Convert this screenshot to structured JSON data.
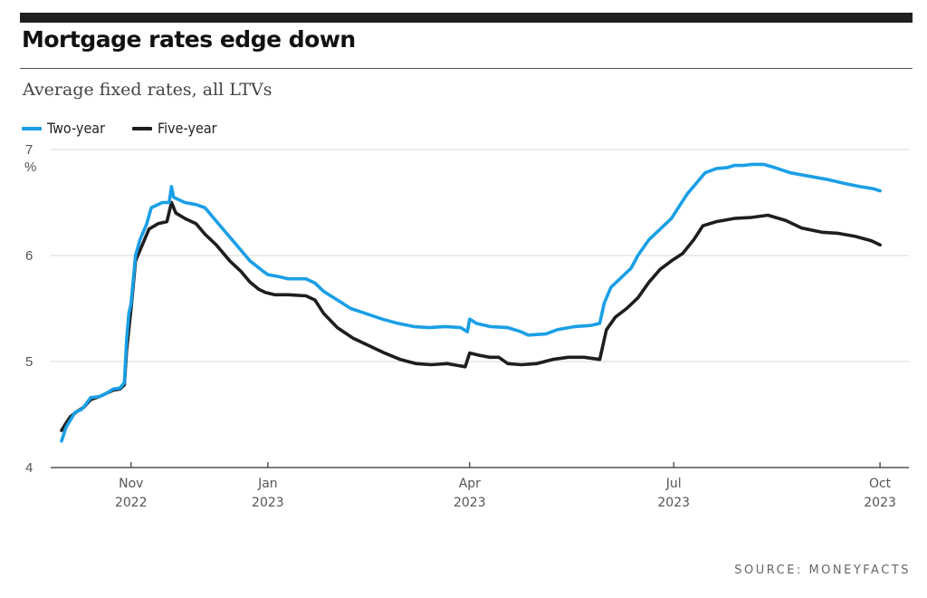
{
  "header": {
    "title": "Mortgage rates edge down",
    "subtitle": "Average fixed rates, all LTVs"
  },
  "source": "SOURCE: MONEYFACTS",
  "colors": {
    "two_year": "#1a9fe6",
    "five_year": "#1e1e1e",
    "grid": "#d9d9d9",
    "axis_text": "#555555"
  },
  "chart_data": {
    "type": "line",
    "title": "Mortgage rates edge down",
    "subtitle": "Average fixed rates, all LTVs",
    "xlabel": "",
    "ylabel": "%",
    "ylim": [
      4,
      7
    ],
    "yticks": [
      4,
      5,
      6,
      7
    ],
    "xlim": [
      "2022-10-01",
      "2023-10-05"
    ],
    "xticks": [
      {
        "date": "2022-11-01",
        "month": "Nov",
        "year": "2022"
      },
      {
        "date": "2023-01-01",
        "month": "Jan",
        "year": "2023"
      },
      {
        "date": "2023-04-01",
        "month": "Apr",
        "year": "2023"
      },
      {
        "date": "2023-07-01",
        "month": "Jul",
        "year": "2023"
      },
      {
        "date": "2023-10-01",
        "month": "Oct",
        "year": "2023"
      }
    ],
    "grid": true,
    "legend_position": "top-left",
    "series": [
      {
        "name": "Two-year",
        "color": "#1a9fe6",
        "points": [
          [
            "2022-10-01",
            4.25
          ],
          [
            "2022-10-03",
            4.38
          ],
          [
            "2022-10-05",
            4.45
          ],
          [
            "2022-10-07",
            4.52
          ],
          [
            "2022-10-10",
            4.55
          ],
          [
            "2022-10-12",
            4.6
          ],
          [
            "2022-10-14",
            4.66
          ],
          [
            "2022-10-18",
            4.67
          ],
          [
            "2022-10-21",
            4.7
          ],
          [
            "2022-10-24",
            4.74
          ],
          [
            "2022-10-27",
            4.75
          ],
          [
            "2022-10-29",
            4.8
          ],
          [
            "2022-10-30",
            5.2
          ],
          [
            "2022-10-31",
            5.45
          ],
          [
            "2022-11-01",
            5.55
          ],
          [
            "2022-11-03",
            6.0
          ],
          [
            "2022-11-05",
            6.15
          ],
          [
            "2022-11-08",
            6.3
          ],
          [
            "2022-11-10",
            6.45
          ],
          [
            "2022-11-15",
            6.5
          ],
          [
            "2022-11-18",
            6.5
          ],
          [
            "2022-11-19",
            6.65
          ],
          [
            "2022-11-20",
            6.55
          ],
          [
            "2022-11-25",
            6.5
          ],
          [
            "2022-11-30",
            6.48
          ],
          [
            "2022-12-04",
            6.45
          ],
          [
            "2022-12-08",
            6.35
          ],
          [
            "2022-12-12",
            6.25
          ],
          [
            "2022-12-16",
            6.15
          ],
          [
            "2022-12-20",
            6.05
          ],
          [
            "2022-12-24",
            5.95
          ],
          [
            "2022-12-27",
            5.9
          ],
          [
            "2022-12-30",
            5.85
          ],
          [
            "2023-01-01",
            5.82
          ],
          [
            "2023-01-06",
            5.8
          ],
          [
            "2023-01-10",
            5.78
          ],
          [
            "2023-01-18",
            5.78
          ],
          [
            "2023-01-22",
            5.74
          ],
          [
            "2023-01-26",
            5.66
          ],
          [
            "2023-02-01",
            5.58
          ],
          [
            "2023-02-07",
            5.5
          ],
          [
            "2023-02-14",
            5.45
          ],
          [
            "2023-02-21",
            5.4
          ],
          [
            "2023-02-28",
            5.36
          ],
          [
            "2023-03-07",
            5.33
          ],
          [
            "2023-03-14",
            5.32
          ],
          [
            "2023-03-21",
            5.33
          ],
          [
            "2023-03-28",
            5.32
          ],
          [
            "2023-03-31",
            5.28
          ],
          [
            "2023-04-01",
            5.4
          ],
          [
            "2023-04-04",
            5.36
          ],
          [
            "2023-04-10",
            5.33
          ],
          [
            "2023-04-18",
            5.32
          ],
          [
            "2023-04-24",
            5.28
          ],
          [
            "2023-04-27",
            5.25
          ],
          [
            "2023-05-05",
            5.26
          ],
          [
            "2023-05-10",
            5.3
          ],
          [
            "2023-05-18",
            5.33
          ],
          [
            "2023-05-25",
            5.34
          ],
          [
            "2023-05-29",
            5.36
          ],
          [
            "2023-05-31",
            5.55
          ],
          [
            "2023-06-03",
            5.7
          ],
          [
            "2023-06-08",
            5.8
          ],
          [
            "2023-06-12",
            5.88
          ],
          [
            "2023-06-15",
            6.0
          ],
          [
            "2023-06-20",
            6.15
          ],
          [
            "2023-06-25",
            6.25
          ],
          [
            "2023-06-30",
            6.35
          ],
          [
            "2023-07-03",
            6.45
          ],
          [
            "2023-07-07",
            6.58
          ],
          [
            "2023-07-11",
            6.68
          ],
          [
            "2023-07-15",
            6.78
          ],
          [
            "2023-07-20",
            6.82
          ],
          [
            "2023-07-25",
            6.83
          ],
          [
            "2023-07-28",
            6.85
          ],
          [
            "2023-08-01",
            6.85
          ],
          [
            "2023-08-05",
            6.86
          ],
          [
            "2023-08-10",
            6.86
          ],
          [
            "2023-08-15",
            6.83
          ],
          [
            "2023-08-22",
            6.78
          ],
          [
            "2023-08-30",
            6.75
          ],
          [
            "2023-09-07",
            6.72
          ],
          [
            "2023-09-15",
            6.68
          ],
          [
            "2023-09-22",
            6.65
          ],
          [
            "2023-09-28",
            6.63
          ],
          [
            "2023-10-01",
            6.61
          ]
        ]
      },
      {
        "name": "Five-year",
        "color": "#1e1e1e",
        "points": [
          [
            "2022-10-01",
            4.35
          ],
          [
            "2022-10-03",
            4.42
          ],
          [
            "2022-10-05",
            4.48
          ],
          [
            "2022-10-08",
            4.53
          ],
          [
            "2022-10-11",
            4.57
          ],
          [
            "2022-10-14",
            4.64
          ],
          [
            "2022-10-18",
            4.67
          ],
          [
            "2022-10-21",
            4.7
          ],
          [
            "2022-10-24",
            4.73
          ],
          [
            "2022-10-27",
            4.74
          ],
          [
            "2022-10-29",
            4.78
          ],
          [
            "2022-10-30",
            5.1
          ],
          [
            "2022-10-31",
            5.3
          ],
          [
            "2022-11-01",
            5.5
          ],
          [
            "2022-11-03",
            5.95
          ],
          [
            "2022-11-06",
            6.1
          ],
          [
            "2022-11-09",
            6.25
          ],
          [
            "2022-11-13",
            6.3
          ],
          [
            "2022-11-17",
            6.32
          ],
          [
            "2022-11-19",
            6.5
          ],
          [
            "2022-11-21",
            6.4
          ],
          [
            "2022-11-25",
            6.35
          ],
          [
            "2022-11-30",
            6.3
          ],
          [
            "2022-12-04",
            6.2
          ],
          [
            "2022-12-09",
            6.1
          ],
          [
            "2022-12-15",
            5.95
          ],
          [
            "2022-12-20",
            5.85
          ],
          [
            "2022-12-24",
            5.75
          ],
          [
            "2022-12-28",
            5.68
          ],
          [
            "2022-12-31",
            5.65
          ],
          [
            "2023-01-04",
            5.63
          ],
          [
            "2023-01-10",
            5.63
          ],
          [
            "2023-01-18",
            5.62
          ],
          [
            "2023-01-22",
            5.58
          ],
          [
            "2023-01-26",
            5.45
          ],
          [
            "2023-02-01",
            5.32
          ],
          [
            "2023-02-08",
            5.22
          ],
          [
            "2023-02-15",
            5.15
          ],
          [
            "2023-02-22",
            5.08
          ],
          [
            "2023-03-01",
            5.02
          ],
          [
            "2023-03-08",
            4.98
          ],
          [
            "2023-03-15",
            4.97
          ],
          [
            "2023-03-22",
            4.98
          ],
          [
            "2023-03-30",
            4.95
          ],
          [
            "2023-04-01",
            5.08
          ],
          [
            "2023-04-05",
            5.06
          ],
          [
            "2023-04-10",
            5.04
          ],
          [
            "2023-04-14",
            5.04
          ],
          [
            "2023-04-18",
            4.98
          ],
          [
            "2023-04-24",
            4.97
          ],
          [
            "2023-05-01",
            4.98
          ],
          [
            "2023-05-08",
            5.02
          ],
          [
            "2023-05-15",
            5.04
          ],
          [
            "2023-05-22",
            5.04
          ],
          [
            "2023-05-29",
            5.02
          ],
          [
            "2023-06-01",
            5.3
          ],
          [
            "2023-06-05",
            5.42
          ],
          [
            "2023-06-10",
            5.5
          ],
          [
            "2023-06-15",
            5.6
          ],
          [
            "2023-06-20",
            5.75
          ],
          [
            "2023-06-25",
            5.87
          ],
          [
            "2023-06-30",
            5.95
          ],
          [
            "2023-07-05",
            6.02
          ],
          [
            "2023-07-10",
            6.15
          ],
          [
            "2023-07-14",
            6.28
          ],
          [
            "2023-07-20",
            6.32
          ],
          [
            "2023-07-28",
            6.35
          ],
          [
            "2023-08-05",
            6.36
          ],
          [
            "2023-08-12",
            6.38
          ],
          [
            "2023-08-20",
            6.33
          ],
          [
            "2023-08-27",
            6.26
          ],
          [
            "2023-09-05",
            6.22
          ],
          [
            "2023-09-12",
            6.21
          ],
          [
            "2023-09-20",
            6.18
          ],
          [
            "2023-09-27",
            6.14
          ],
          [
            "2023-10-01",
            6.1
          ]
        ]
      }
    ]
  }
}
